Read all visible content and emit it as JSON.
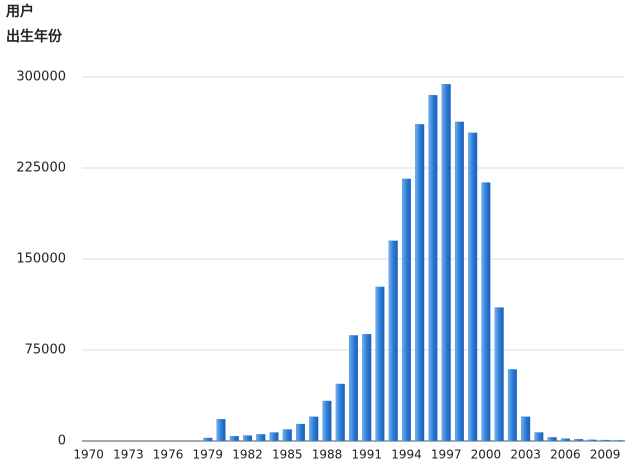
{
  "chart_data": {
    "type": "bar",
    "title": [
      "用户",
      "出生年份"
    ],
    "categories": [
      "1970",
      null,
      null,
      "1973",
      null,
      null,
      "1976",
      null,
      null,
      "1979",
      null,
      null,
      "1982",
      null,
      null,
      "1985",
      null,
      null,
      "1988",
      null,
      null,
      "1991",
      null,
      null,
      "1994",
      null,
      null,
      "1997",
      null,
      null,
      "2000",
      null,
      null,
      "2003",
      null,
      null,
      "2006",
      null,
      null,
      "2009",
      null
    ],
    "values": [
      0,
      0,
      0,
      0,
      0,
      0,
      0,
      0,
      0,
      2500,
      18000,
      4000,
      4500,
      5500,
      7000,
      9500,
      14000,
      20000,
      33000,
      47000,
      87000,
      88000,
      127000,
      165000,
      216000,
      261000,
      285000,
      294000,
      263000,
      254000,
      213000,
      110000,
      59000,
      20000,
      7000,
      3000,
      2000,
      1500,
      1000,
      800,
      500
    ],
    "color": "#2f7fd6",
    "ylim": [
      0,
      300000
    ],
    "yticks": [
      0,
      75000,
      150000,
      225000,
      300000
    ],
    "grid": true
  }
}
